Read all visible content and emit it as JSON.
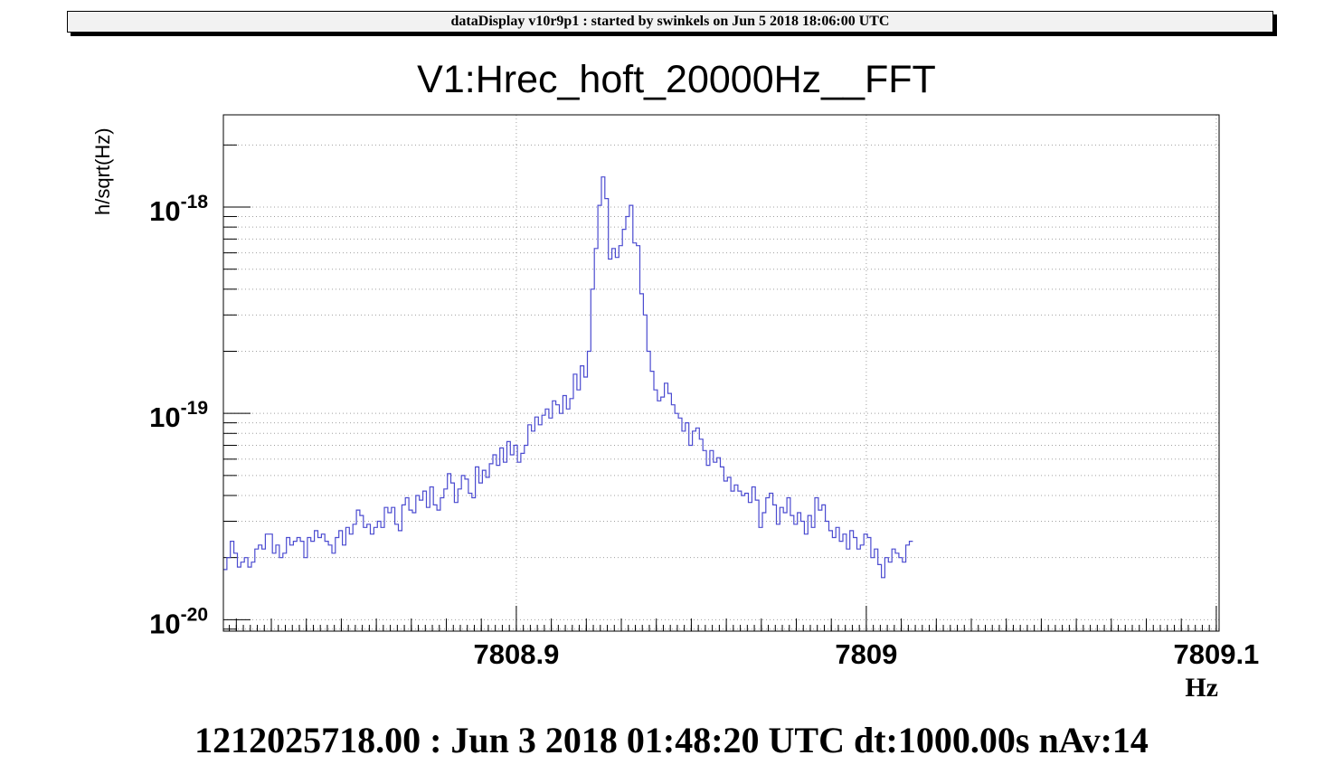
{
  "banner": {
    "text": "dataDisplay v10r9p1 : started by swinkels on Jun  5 2018 18:06:00 UTC"
  },
  "footer": {
    "text": "1212025718.00 : Jun  3 2018 01:48:20 UTC dt:1000.00s nAv:14"
  },
  "colors": {
    "series": "#4b4bd0",
    "grid": "#a0a0a0",
    "axis": "#000000"
  },
  "chart_data": {
    "type": "line",
    "title": "V1:Hrec_hoft_20000Hz__FFT",
    "xlabel": "Hz",
    "ylabel": "h/sqrt(Hz)",
    "yscale": "log",
    "xlim": [
      7808.8163,
      7809.1008
    ],
    "ylim": [
      8.8e-21,
      2.8e-18
    ],
    "grid": true,
    "x_tick_labels": [
      {
        "value": 7808.9,
        "label": "7808.9"
      },
      {
        "value": 7809.0,
        "label": "7809"
      },
      {
        "value": 7809.1,
        "label": "7809.1"
      }
    ],
    "y_tick_labels": [
      {
        "value": 1e-18,
        "base": "10",
        "exp": "-18"
      },
      {
        "value": 1e-19,
        "base": "10",
        "exp": "-19"
      },
      {
        "value": 1e-20,
        "base": "10",
        "exp": "-20"
      }
    ],
    "series": [
      {
        "style": "step",
        "x_start": 7808.8163,
        "x_step": 0.001,
        "values": [
          1.75e-20,
          2e-20,
          2.4e-20,
          2.1e-20,
          1.8e-20,
          1.9e-20,
          2e-20,
          1.8e-20,
          1.9e-20,
          2.2e-20,
          2.3e-20,
          2.2e-20,
          2.6e-20,
          2.6e-20,
          2.1e-20,
          2.3e-20,
          2e-20,
          2.1e-20,
          2.5e-20,
          2.3e-20,
          2.4e-20,
          2.5e-20,
          2.4e-20,
          2e-20,
          2.5e-20,
          2.4e-20,
          2.7e-20,
          2.5e-20,
          2.6e-20,
          2.4e-20,
          2.3e-20,
          2.1e-20,
          2.5e-20,
          2.7e-20,
          2.3e-20,
          2.8e-20,
          2.6e-20,
          2.9e-20,
          3.4e-20,
          3.2e-20,
          2.8e-20,
          2.9e-20,
          2.6e-20,
          2.8e-20,
          3e-20,
          2.8e-20,
          3.5e-20,
          3.3e-20,
          3.5e-20,
          2.9e-20,
          2.7e-20,
          3.6e-20,
          3.9e-20,
          3.4e-20,
          3.3e-20,
          4e-20,
          3.8e-20,
          4.2e-20,
          3.5e-20,
          4.4e-20,
          3.6e-20,
          3.4e-20,
          3.9e-20,
          4.3e-20,
          5.1e-20,
          4.6e-20,
          3.7e-20,
          4.3e-20,
          5e-20,
          4.8e-20,
          4.1e-20,
          3.9e-20,
          5.5e-20,
          4.6e-20,
          5.3e-20,
          4.9e-20,
          5.7e-20,
          6.3e-20,
          5.6e-20,
          6.8e-20,
          5.8e-20,
          7.3e-20,
          6.3e-20,
          7e-20,
          5.8e-20,
          6.4e-20,
          7e-20,
          8.8e-20,
          8.2e-20,
          9.6e-20,
          8.8e-20,
          9.8e-20,
          1.05e-19,
          9.5e-20,
          1.15e-19,
          1.1e-19,
          1e-19,
          1.22e-19,
          1.05e-19,
          1.18e-19,
          1.55e-19,
          1.3e-19,
          1.7e-19,
          1.5e-19,
          2e-19,
          4e-19,
          6.3e-19,
          1.02e-18,
          1.4e-18,
          1.1e-18,
          5.6e-19,
          6.3e-19,
          5.7e-19,
          6.5e-19,
          7.8e-19,
          9e-19,
          1.02e-18,
          6.7e-19,
          6.5e-19,
          3.8e-19,
          3e-19,
          2e-19,
          1.6e-19,
          1.3e-19,
          1.15e-19,
          1.2e-19,
          1.4e-19,
          1.25e-19,
          1.1e-19,
          1e-19,
          9.5e-20,
          8.2e-20,
          9e-20,
          7e-20,
          8.2e-20,
          8.5e-20,
          7.5e-20,
          6.6e-20,
          5.6e-20,
          6.6e-20,
          5.8e-20,
          6.1e-20,
          5.5e-20,
          4.7e-20,
          4.9e-20,
          4.2e-20,
          4.5e-20,
          4.2e-20,
          4e-20,
          4.1e-20,
          3.7e-20,
          4.4e-20,
          3.8e-20,
          2.8e-20,
          3.3e-20,
          3.9e-20,
          4.1e-20,
          3.6e-20,
          2.9e-20,
          3.5e-20,
          3.3e-20,
          3.9e-20,
          3.2e-20,
          2.9e-20,
          3.3e-20,
          3e-20,
          2.6e-20,
          3.2e-20,
          2.8e-20,
          3.9e-20,
          3.4e-20,
          3.6e-20,
          3e-20,
          2.7e-20,
          2.5e-20,
          2.8e-20,
          2.4e-20,
          2.6e-20,
          2.2e-20,
          2.7e-20,
          2.5e-20,
          2.2e-20,
          2.3e-20,
          2.6e-20,
          2.5e-20,
          2e-20,
          2.2e-20,
          1.85e-20,
          1.6e-20,
          2e-20,
          1.9e-20,
          2.2e-20,
          2.1e-20,
          2e-20,
          1.9e-20,
          2.3e-20,
          2.4e-20
        ]
      }
    ]
  }
}
